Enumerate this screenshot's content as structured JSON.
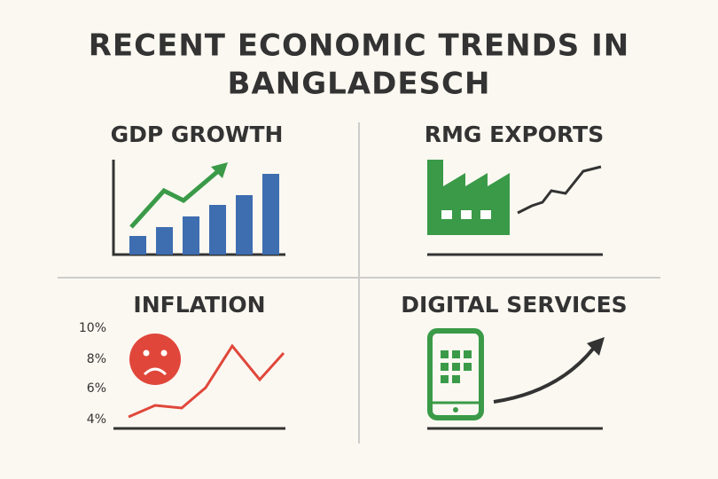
{
  "title": [
    "RECENT ECONOMIC TRENDS IN",
    "BANGLADESCH"
  ],
  "panels": [
    {
      "title": "GDP GROWTH"
    },
    {
      "title": "RMG EXPORTS"
    },
    {
      "title": "INFLATION",
      "ticks": [
        "10%",
        "8%",
        "6%",
        "4%"
      ]
    },
    {
      "title": "DIGITAL SERVICES"
    }
  ]
}
